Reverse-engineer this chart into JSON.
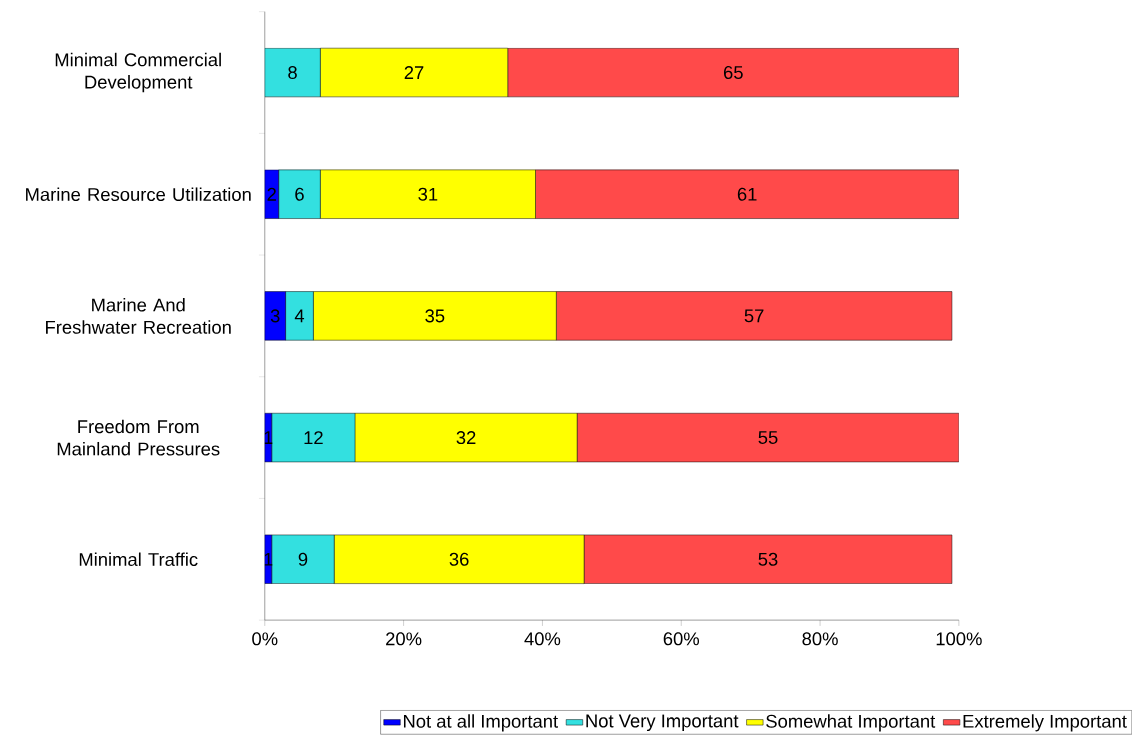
{
  "chart_data": {
    "type": "bar",
    "orientation": "horizontal",
    "stacked": true,
    "categories": [
      "Minimal Commercial Development",
      "Marine Resource Utilization",
      "Marine And Freshwater Recreation",
      "Freedom From Mainland Pressures",
      "Minimal Traffic"
    ],
    "series": [
      {
        "name": "Not at all Important",
        "color": "#0000ff",
        "values": [
          0,
          2,
          3,
          1,
          1
        ],
        "value_labels": [
          null,
          "2",
          "3",
          "1",
          "1"
        ]
      },
      {
        "name": "Not Very Important",
        "color": "#33e0e0",
        "values": [
          8,
          6,
          4,
          12,
          9
        ],
        "value_labels": [
          "8",
          "6",
          "4",
          "12",
          "9"
        ]
      },
      {
        "name": "Somewhat Important",
        "color": "#ffff00",
        "values": [
          27,
          31,
          35,
          32,
          36
        ],
        "value_labels": [
          "27",
          "31",
          "35",
          "32",
          "36"
        ]
      },
      {
        "name": "Extremely Important",
        "color": "#ff4a4a",
        "values": [
          65,
          61,
          57,
          55,
          53
        ],
        "value_labels": [
          "65",
          "61",
          "57",
          "55",
          "53"
        ]
      }
    ],
    "xlim": [
      0,
      100
    ],
    "xticks": [
      {
        "value": 0,
        "label": "0%"
      },
      {
        "value": 20,
        "label": "20%"
      },
      {
        "value": 40,
        "label": "40%"
      },
      {
        "value": 60,
        "label": "60%"
      },
      {
        "value": 80,
        "label": "80%"
      },
      {
        "value": 100,
        "label": "100%"
      }
    ],
    "grid": false,
    "legend": "bottom"
  }
}
